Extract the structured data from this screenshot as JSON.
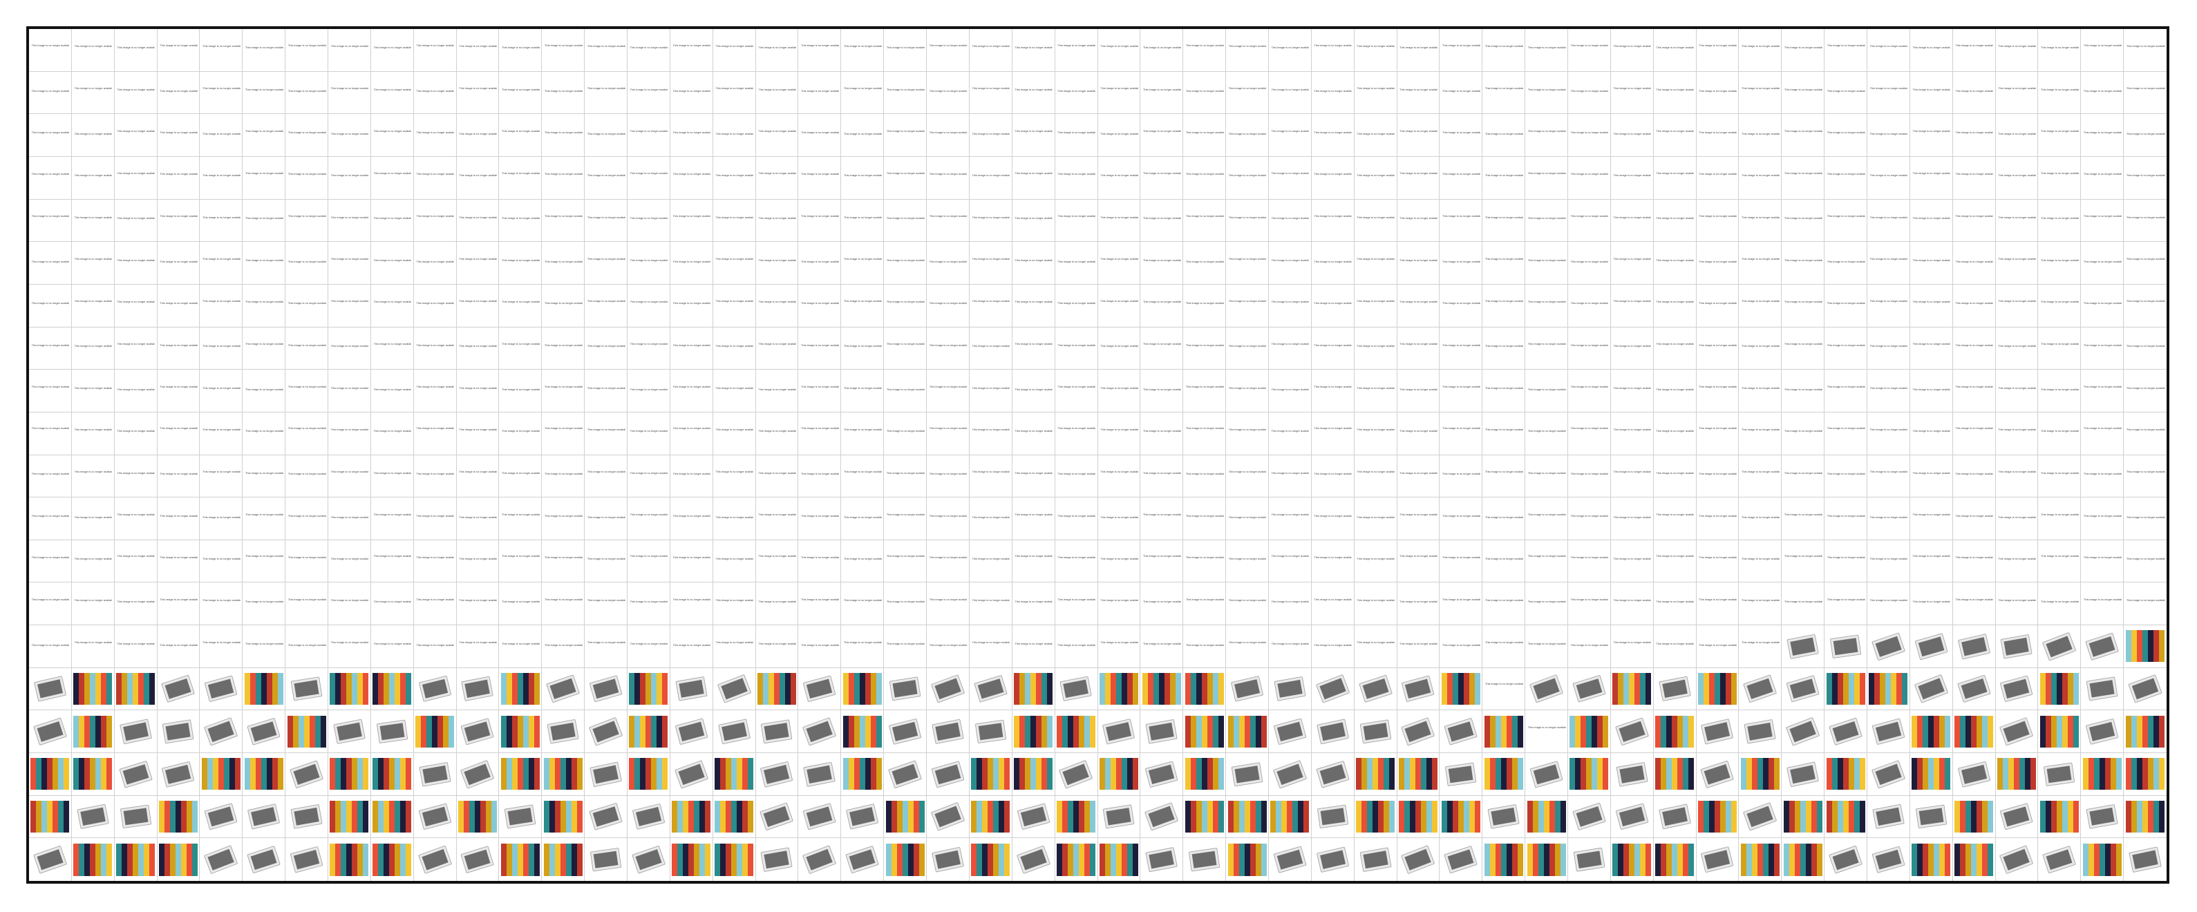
{
  "placeholder_caption": "This image is no longer available",
  "grid": {
    "columns": 50,
    "rows": 20,
    "text_rows": 14
  },
  "colors": {
    "frame": "#111111",
    "gridline": "#d0d0d0",
    "caption_text": "#444444",
    "photo_dark": "#6b6b6b",
    "photo_card": "#e8e8e8"
  },
  "swatch_palette": [
    "#86c9d6",
    "#f4c430",
    "#e94f37",
    "#2a8c8c",
    "#1d1d3b",
    "#c0392b",
    "#d4a017"
  ],
  "cell_kinds": {
    "row_14": [
      "text",
      "text",
      "text",
      "text",
      "text",
      "text",
      "text",
      "text",
      "text",
      "text",
      "text",
      "text",
      "text",
      "text",
      "text",
      "text",
      "text",
      "text",
      "text",
      "text",
      "text",
      "text",
      "text",
      "text",
      "text",
      "text",
      "text",
      "text",
      "text",
      "text",
      "text",
      "text",
      "text",
      "text",
      "text",
      "text",
      "text",
      "text",
      "text",
      "text",
      "text",
      "photo",
      "photo",
      "photo",
      "photo",
      "photo",
      "photo",
      "photo",
      "photo",
      "swatch"
    ],
    "row_15": [
      "photo",
      "swatch",
      "swatch",
      "photo",
      "photo",
      "swatch",
      "photo",
      "swatch",
      "swatch",
      "photo",
      "photo",
      "swatch",
      "photo",
      "photo",
      "swatch",
      "photo",
      "photo",
      "swatch",
      "photo",
      "swatch",
      "photo",
      "photo",
      "photo",
      "swatch",
      "photo",
      "swatch",
      "swatch",
      "swatch",
      "photo",
      "photo",
      "photo",
      "photo",
      "photo",
      "swatch",
      "text",
      "photo",
      "photo",
      "swatch",
      "photo",
      "swatch",
      "photo",
      "photo",
      "swatch",
      "swatch",
      "photo",
      "photo",
      "photo",
      "swatch",
      "photo",
      "photo"
    ],
    "row_16": [
      "photo",
      "swatch",
      "photo",
      "photo",
      "photo",
      "photo",
      "swatch",
      "photo",
      "photo",
      "swatch",
      "photo",
      "swatch",
      "photo",
      "photo",
      "swatch",
      "photo",
      "photo",
      "photo",
      "photo",
      "swatch",
      "photo",
      "photo",
      "photo",
      "swatch",
      "swatch",
      "photo",
      "photo",
      "swatch",
      "swatch",
      "photo",
      "photo",
      "photo",
      "photo",
      "photo",
      "swatch",
      "text",
      "swatch",
      "photo",
      "swatch",
      "photo",
      "photo",
      "photo",
      "photo",
      "photo",
      "swatch",
      "swatch",
      "photo",
      "swatch",
      "photo",
      "swatch"
    ],
    "row_17": [
      "swatch",
      "swatch",
      "photo",
      "photo",
      "swatch",
      "swatch",
      "photo",
      "swatch",
      "swatch",
      "photo",
      "photo",
      "swatch",
      "swatch",
      "photo",
      "swatch",
      "photo",
      "swatch",
      "photo",
      "photo",
      "swatch",
      "photo",
      "photo",
      "swatch",
      "swatch",
      "photo",
      "swatch",
      "photo",
      "swatch",
      "photo",
      "photo",
      "photo",
      "swatch",
      "swatch",
      "photo",
      "swatch",
      "photo",
      "swatch",
      "photo",
      "swatch",
      "photo",
      "swatch",
      "photo",
      "swatch",
      "photo",
      "swatch",
      "photo",
      "swatch",
      "photo",
      "swatch",
      "swatch"
    ],
    "row_18": [
      "swatch",
      "photo",
      "photo",
      "swatch",
      "photo",
      "photo",
      "photo",
      "swatch",
      "swatch",
      "photo",
      "swatch",
      "photo",
      "swatch",
      "photo",
      "photo",
      "swatch",
      "swatch",
      "photo",
      "photo",
      "photo",
      "swatch",
      "photo",
      "swatch",
      "photo",
      "swatch",
      "photo",
      "photo",
      "swatch",
      "swatch",
      "swatch",
      "photo",
      "swatch",
      "swatch",
      "swatch",
      "photo",
      "swatch",
      "photo",
      "photo",
      "photo",
      "swatch",
      "photo",
      "swatch",
      "swatch",
      "photo",
      "photo",
      "swatch",
      "photo",
      "swatch",
      "photo",
      "swatch"
    ],
    "row_19": [
      "photo",
      "swatch",
      "swatch",
      "swatch",
      "photo",
      "photo",
      "photo",
      "swatch",
      "swatch",
      "photo",
      "photo",
      "swatch",
      "swatch",
      "photo",
      "photo",
      "swatch",
      "swatch",
      "photo",
      "photo",
      "photo",
      "swatch",
      "photo",
      "swatch",
      "photo",
      "swatch",
      "swatch",
      "photo",
      "photo",
      "swatch",
      "photo",
      "photo",
      "photo",
      "photo",
      "photo",
      "swatch",
      "swatch",
      "photo",
      "swatch",
      "swatch",
      "photo",
      "swatch",
      "swatch",
      "photo",
      "photo",
      "swatch",
      "swatch",
      "photo",
      "photo",
      "swatch",
      "photo"
    ]
  }
}
